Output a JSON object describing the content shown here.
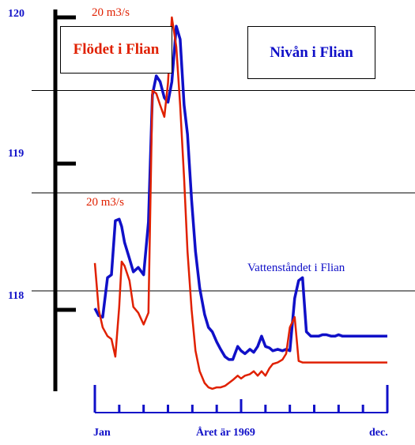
{
  "chart_data": {
    "type": "line",
    "title": "",
    "xlabel": "Året är 1969",
    "ylabel": "",
    "x_tick_labels": [
      "Jan",
      "dec."
    ],
    "x_range": [
      0,
      12
    ],
    "ylim": [
      117.4,
      120.1
    ],
    "y_tick_labels": [
      "118",
      "119",
      "120"
    ],
    "grid": true,
    "series": [
      {
        "name": "Nivån i Flian",
        "color": "#1010c8",
        "x": [
          0.0,
          0.16,
          0.32,
          0.52,
          0.68,
          0.84,
          1.0,
          1.1,
          1.22,
          1.42,
          1.58,
          1.78,
          2.0,
          2.2,
          2.36,
          2.52,
          2.68,
          2.85,
          3.0,
          3.16,
          3.34,
          3.5,
          3.66,
          3.8,
          3.97,
          4.13,
          4.3,
          4.5,
          4.66,
          4.82,
          5.0,
          5.16,
          5.34,
          5.5,
          5.66,
          5.86,
          6.0,
          6.16,
          6.36,
          6.52,
          6.68,
          6.84,
          7.0,
          7.16,
          7.3,
          7.5,
          7.7,
          7.85,
          8.0,
          8.2,
          8.36,
          8.52,
          8.68,
          8.86,
          9.0,
          9.18,
          9.34,
          9.5,
          9.7,
          9.86,
          10.0,
          10.16,
          10.3,
          10.5,
          10.66,
          10.84,
          11.0,
          11.16,
          11.34,
          11.5,
          11.66,
          11.84,
          12.0
        ],
        "values": [
          118.01,
          117.96,
          117.95,
          118.22,
          118.24,
          118.61,
          118.62,
          118.57,
          118.46,
          118.35,
          118.26,
          118.29,
          118.24,
          118.6,
          119.47,
          119.6,
          119.56,
          119.45,
          119.42,
          119.56,
          119.94,
          119.85,
          119.4,
          119.2,
          118.75,
          118.4,
          118.15,
          117.97,
          117.88,
          117.85,
          117.78,
          117.73,
          117.68,
          117.66,
          117.66,
          117.75,
          117.72,
          117.7,
          117.73,
          117.71,
          117.75,
          117.82,
          117.75,
          117.74,
          117.72,
          117.73,
          117.72,
          117.73,
          117.72,
          118.08,
          118.2,
          118.22,
          117.85,
          117.82,
          117.82,
          117.82,
          117.83,
          117.83,
          117.82,
          117.82,
          117.83,
          117.82,
          117.82,
          117.82,
          117.82,
          117.82,
          117.82,
          117.82,
          117.82,
          117.82,
          117.82,
          117.82,
          117.82
        ],
        "note_values_are_level_m": true
      },
      {
        "name": "Flödet i Flian",
        "color": "#e02000",
        "x": [
          0.0,
          0.16,
          0.32,
          0.52,
          0.68,
          0.84,
          1.0,
          1.1,
          1.22,
          1.42,
          1.58,
          1.78,
          2.0,
          2.2,
          2.36,
          2.52,
          2.68,
          2.85,
          3.0,
          3.16,
          3.34,
          3.5,
          3.66,
          3.8,
          3.97,
          4.13,
          4.3,
          4.5,
          4.66,
          4.82,
          5.0,
          5.16,
          5.34,
          5.5,
          5.66,
          5.86,
          6.0,
          6.16,
          6.36,
          6.52,
          6.68,
          6.84,
          7.0,
          7.16,
          7.3,
          7.5,
          7.7,
          7.85,
          8.0,
          8.2,
          8.36,
          8.52,
          8.68,
          8.86,
          9.0,
          9.18,
          9.34,
          9.5,
          9.7,
          9.86,
          10.0,
          10.16,
          10.3,
          10.5,
          10.66,
          10.84,
          11.0,
          11.16,
          11.34,
          11.5,
          11.66,
          11.84,
          12.0
        ],
        "values": [
          118.32,
          118.0,
          117.88,
          117.82,
          117.8,
          117.68,
          118.02,
          118.33,
          118.3,
          118.2,
          118.02,
          117.98,
          117.9,
          117.98,
          119.5,
          119.48,
          119.4,
          119.32,
          119.55,
          120.0,
          119.8,
          119.4,
          118.9,
          118.4,
          118.0,
          117.72,
          117.58,
          117.5,
          117.47,
          117.46,
          117.47,
          117.47,
          117.48,
          117.5,
          117.52,
          117.55,
          117.53,
          117.55,
          117.56,
          117.58,
          117.55,
          117.58,
          117.55,
          117.6,
          117.63,
          117.64,
          117.66,
          117.7,
          117.88,
          117.95,
          117.65,
          117.64,
          117.64,
          117.64,
          117.64,
          117.64,
          117.64,
          117.64,
          117.64,
          117.64,
          117.64,
          117.64,
          117.64,
          117.64,
          117.64,
          117.64,
          117.64,
          117.64,
          117.64,
          117.64,
          117.64,
          117.64,
          117.64
        ]
      }
    ],
    "annotations": [
      "20 m3/s",
      "20 m3/s",
      "Vattenståndet i Flian"
    ]
  },
  "labels": {
    "y120": "120",
    "y119": "119",
    "y118": "118",
    "flow_scale_top": "20 m3/s",
    "flow_scale_mid": "20 m3/s",
    "level_annotation": "Vattenståndet i Flian",
    "box_flow": "Flödet i Flian",
    "box_level": "Nivån i Flian",
    "x_start": "Jan",
    "x_mid": "Året är 1969",
    "x_end": "dec."
  }
}
